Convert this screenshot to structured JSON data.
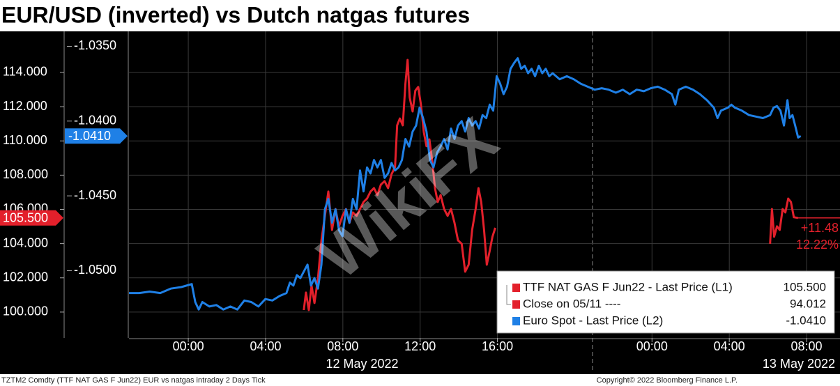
{
  "chart_data": {
    "type": "line",
    "title": "EUR/USD (inverted) vs Dutch natgas futures",
    "xlim": [
      -3.07,
      33.73
    ],
    "xticks": [
      {
        "value": 0,
        "label": "00:00"
      },
      {
        "value": 4,
        "label": "04:00"
      },
      {
        "value": 8,
        "label": "08:00"
      },
      {
        "value": 12,
        "label": "12:00"
      },
      {
        "value": 16,
        "label": "16:00"
      },
      {
        "value": 24,
        "label": "00:00"
      },
      {
        "value": 28,
        "label": "04:00"
      },
      {
        "value": 32,
        "label": "08:00"
      }
    ],
    "date_labels": [
      {
        "value": 9,
        "label": "12 May 2022"
      },
      {
        "value": 31.6,
        "label": "13 May 2022"
      }
    ],
    "ylim": [
      98.49,
      116.4
    ],
    "yticks": [
      {
        "value": 100,
        "label": "100.000"
      },
      {
        "value": 102,
        "label": "102.000"
      },
      {
        "value": 104,
        "label": "104.000"
      },
      {
        "value": 106,
        "label": "106.000"
      },
      {
        "value": 108,
        "label": "108.000"
      },
      {
        "value": 110,
        "label": "110.000"
      },
      {
        "value": 112,
        "label": "112.000"
      },
      {
        "value": 114,
        "label": "114.000"
      }
    ],
    "y2lim": [
      -1.0545,
      -1.034
    ],
    "y2ticks": [
      {
        "value": -1.035,
        "label": "-1.0350"
      },
      {
        "value": -1.04,
        "label": "-1.0400"
      },
      {
        "value": -1.045,
        "label": "-1.0450"
      },
      {
        "value": -1.05,
        "label": "-1.0500"
      }
    ],
    "grid": true,
    "series": [
      {
        "name": "TTF NAT GAS F Jun22 - Last Price (L1)",
        "color": "#e3202b",
        "axis": "y1",
        "last_label": "105.500",
        "x": [
          5.98,
          6.09,
          6.24,
          6.38,
          6.53,
          6.71,
          6.89,
          7.07,
          7.25,
          7.44,
          7.62,
          7.8,
          7.98,
          8.16,
          8.34,
          8.52,
          8.71,
          8.89,
          9.07,
          9.25,
          9.43,
          9.61,
          9.79,
          9.97,
          10.16,
          10.34,
          10.52,
          10.7,
          10.81,
          10.95,
          11.1,
          11.24,
          11.35,
          11.46,
          11.61,
          11.75,
          11.9,
          12.04,
          12.19,
          12.33,
          12.48,
          12.62,
          12.77,
          12.91,
          13.06,
          13.24,
          13.42,
          13.6,
          13.78,
          13.96,
          14.15,
          14.33,
          14.51,
          14.69,
          14.87,
          15.02,
          15.16,
          15.31,
          15.45,
          15.6,
          15.74,
          15.89,
          null,
          30.11,
          30.21,
          30.32,
          30.47,
          30.61,
          30.76,
          30.9,
          31.05,
          31.19,
          31.34,
          31.56
        ],
        "values": [
          100.12,
          101.14,
          100.12,
          101.55,
          100.53,
          101.95,
          104.19,
          105.62,
          107.04,
          104.8,
          106.02,
          105.01,
          105.62,
          106.02,
          105.21,
          105.82,
          105.62,
          106.02,
          106.43,
          106.63,
          107.04,
          107.24,
          106.84,
          107.45,
          107.65,
          107.24,
          108.06,
          108.47,
          110.91,
          111.31,
          110.91,
          113.35,
          114.73,
          112.54,
          111.72,
          112.94,
          113.15,
          112.13,
          110.5,
          109.69,
          110.09,
          108.87,
          107.24,
          106.43,
          106.84,
          106.02,
          105.62,
          106.02,
          105.21,
          104.19,
          103.99,
          102.36,
          102.77,
          104.8,
          106.02,
          107.24,
          106.43,
          104.8,
          102.77,
          103.58,
          104.4,
          104.92,
          null,
          103.99,
          106.02,
          104.4,
          105.01,
          104.8,
          106.02,
          105.82,
          106.63,
          106.43,
          105.54,
          105.5
        ]
      },
      {
        "name": "Euro Spot - Last Price (L2)",
        "color": "#1f80e6",
        "axis": "y2",
        "last_label": "-1.0410",
        "x": [
          -3.08,
          -2.54,
          -2.0,
          -1.45,
          -0.91,
          -0.36,
          0.18,
          0.36,
          0.54,
          0.73,
          1.09,
          1.45,
          1.81,
          2.18,
          2.54,
          2.9,
          3.26,
          3.63,
          3.99,
          4.35,
          4.72,
          5.08,
          5.26,
          5.44,
          5.62,
          5.8,
          6.17,
          6.35,
          6.53,
          6.71,
          6.89,
          7.07,
          7.25,
          7.44,
          7.62,
          7.8,
          7.98,
          8.16,
          8.34,
          8.52,
          8.71,
          8.89,
          9.07,
          9.25,
          9.43,
          9.61,
          9.79,
          9.97,
          10.16,
          10.34,
          10.52,
          10.7,
          10.88,
          11.06,
          11.24,
          11.43,
          11.61,
          11.79,
          11.97,
          12.15,
          12.33,
          12.51,
          12.69,
          12.88,
          13.06,
          13.24,
          13.42,
          13.6,
          13.78,
          13.96,
          14.15,
          14.33,
          14.51,
          14.69,
          14.87,
          15.05,
          15.23,
          15.42,
          15.6,
          15.78,
          15.96,
          16.14,
          16.32,
          16.5,
          16.68,
          16.87,
          17.05,
          17.23,
          17.41,
          17.59,
          17.77,
          17.95,
          18.14,
          18.32,
          18.5,
          18.68,
          18.86,
          19.22,
          19.59,
          19.95,
          20.31,
          20.67,
          21.04,
          21.4,
          21.76,
          22.13,
          22.49,
          22.85,
          23.21,
          23.58,
          23.94,
          24.3,
          24.66,
          25.03,
          25.21,
          25.39,
          25.75,
          26.12,
          26.48,
          26.84,
          27.2,
          27.39,
          27.57,
          27.93,
          28.11,
          28.29,
          28.65,
          29.02,
          29.38,
          29.74,
          30.11,
          30.29,
          30.47,
          30.65,
          30.83,
          31.01,
          31.12,
          31.27,
          31.41,
          31.56,
          31.7
        ],
        "values": [
          -1.0515,
          -1.0515,
          -1.0514,
          -1.0515,
          -1.0512,
          -1.0511,
          -1.0509,
          -1.0521,
          -1.0526,
          -1.0521,
          -1.0524,
          -1.0523,
          -1.0526,
          -1.0524,
          -1.0526,
          -1.052,
          -1.0521,
          -1.0524,
          -1.0519,
          -1.052,
          -1.0517,
          -1.0515,
          -1.0508,
          -1.051,
          -1.0503,
          -1.0505,
          -1.0496,
          -1.051,
          -1.0505,
          -1.0512,
          -1.0496,
          -1.0459,
          -1.0452,
          -1.0468,
          -1.0459,
          -1.0473,
          -1.0477,
          -1.0459,
          -1.0468,
          -1.0452,
          -1.0459,
          -1.0433,
          -1.0447,
          -1.0431,
          -1.0435,
          -1.0426,
          -1.0431,
          -1.0426,
          -1.0438,
          -1.0435,
          -1.0428,
          -1.0433,
          -1.0431,
          -1.0426,
          -1.0412,
          -1.0417,
          -1.0407,
          -1.0403,
          -1.0391,
          -1.0398,
          -1.0407,
          -1.0426,
          -1.0431,
          -1.0421,
          -1.0417,
          -1.0412,
          -1.0419,
          -1.0405,
          -1.0412,
          -1.0403,
          -1.04,
          -1.0407,
          -1.0398,
          -1.0403,
          -1.04,
          -1.0405,
          -1.0396,
          -1.0398,
          -1.0389,
          -1.0393,
          -1.037,
          -1.0375,
          -1.0382,
          -1.0377,
          -1.0365,
          -1.0361,
          -1.0358,
          -1.0365,
          -1.0363,
          -1.0368,
          -1.0365,
          -1.037,
          -1.0363,
          -1.0368,
          -1.0365,
          -1.037,
          -1.0368,
          -1.0372,
          -1.037,
          -1.0372,
          -1.0375,
          -1.0377,
          -1.0379,
          -1.0378,
          -1.0379,
          -1.0381,
          -1.0379,
          -1.0382,
          -1.0379,
          -1.038,
          -1.0378,
          -1.0377,
          -1.0379,
          -1.0382,
          -1.0389,
          -1.0379,
          -1.0377,
          -1.0379,
          -1.0382,
          -1.0386,
          -1.0391,
          -1.0398,
          -1.0393,
          -1.0391,
          -1.0389,
          -1.0391,
          -1.0393,
          -1.0396,
          -1.0397,
          -1.0398,
          -1.0396,
          -1.0391,
          -1.039,
          -1.0393,
          -1.0403,
          -1.0386,
          -1.0398,
          -1.0396,
          -1.0403,
          -1.0411,
          -1.041
        ]
      }
    ],
    "reference": {
      "name": "Close on 05/11 ----",
      "value": 94.012,
      "color": "#e3202b"
    },
    "annotations": [
      "+11.48",
      "12.22%"
    ],
    "watermark": "WikiFX",
    "footer_left": "TZTM2 Comdty (TTF NAT GAS F    Jun22) EUR vs natgas intraday 2 Days  Tick",
    "footer_right": "Copyright© 2022 Bloomberg Finance L.P."
  }
}
